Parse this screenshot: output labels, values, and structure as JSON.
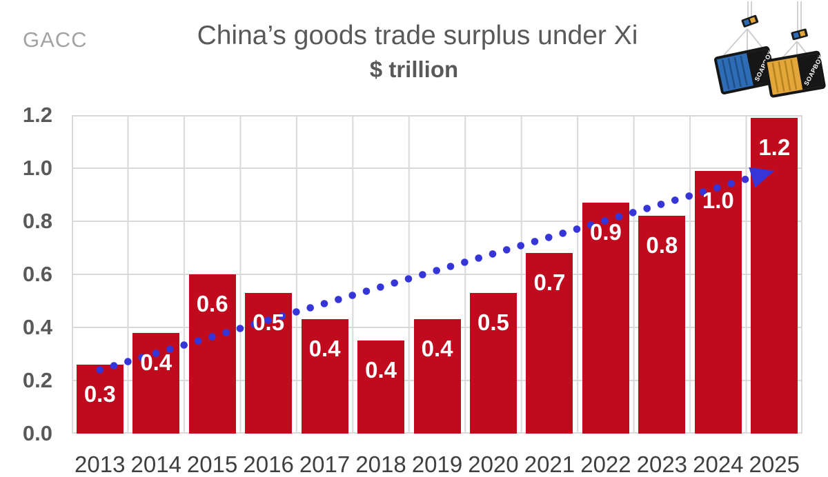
{
  "header": {
    "source": "GACC",
    "title": "China’s goods trade surplus under Xi",
    "subtitle": "$ trillion"
  },
  "logo": {
    "label": "SOAPBOX",
    "blue": "#2E6DB5",
    "yellow": "#E2A63B",
    "dark": "#1A1A1A"
  },
  "chart_data": {
    "type": "bar",
    "title": "China’s goods trade surplus under Xi",
    "unit_label": "$ trillion",
    "categories": [
      "2013",
      "2014",
      "2015",
      "2016",
      "2017",
      "2018",
      "2019",
      "2020",
      "2021",
      "2022",
      "2023",
      "2024",
      "2025"
    ],
    "values": [
      0.26,
      0.38,
      0.6,
      0.53,
      0.43,
      0.35,
      0.43,
      0.53,
      0.68,
      0.87,
      0.82,
      0.99,
      1.19
    ],
    "bar_labels": [
      "0.3",
      "0.4",
      "0.6",
      "0.5",
      "0.4",
      "0.4",
      "0.4",
      "0.5",
      "0.7",
      "0.9",
      "0.8",
      "1.0",
      "1.2"
    ],
    "xlabel": "",
    "ylabel": "",
    "ylim": [
      0,
      1.2
    ],
    "ytick_labels": [
      "0.0",
      "0.2",
      "0.4",
      "0.6",
      "0.8",
      "1.0",
      "1.2"
    ],
    "grid": true,
    "legend": "none",
    "colors": {
      "bar": "#C00B1E",
      "bar_label": "#FFFFFF",
      "grid": "#D9D9D9",
      "ytick_text": "#595959",
      "xtick_text": "#3F3F3F",
      "trend": "#3535D8"
    },
    "trend": {
      "style": "dotted-arrow",
      "color": "#3535D8",
      "start": {
        "category": "2013",
        "value": 0.24
      },
      "end": {
        "category": "2025",
        "value": 0.99
      }
    }
  }
}
